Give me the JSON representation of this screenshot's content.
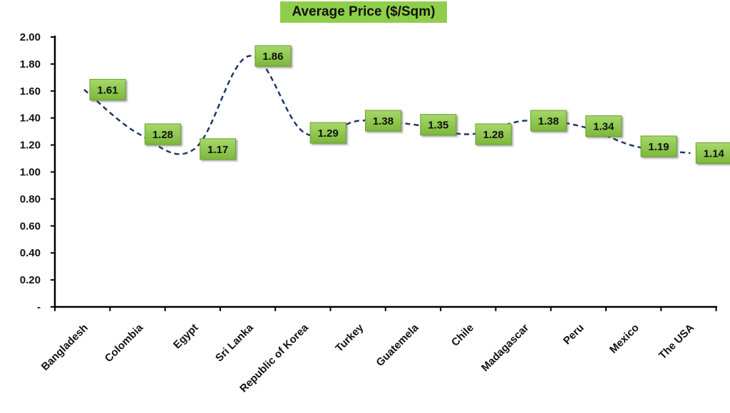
{
  "chart_data": {
    "type": "line",
    "title": "Average Price ($/Sqm)",
    "xlabel": "",
    "ylabel": "",
    "categories": [
      "Bangladesh",
      "Colombia",
      "Egypt",
      "Sri Lanka",
      "Republic of Korea",
      "Turkey",
      "Guatemela",
      "Chile",
      "Madagascar",
      "Peru",
      "Mexico",
      "The USA"
    ],
    "series": [
      {
        "values": [
          1.61,
          1.28,
          1.17,
          1.86,
          1.29,
          1.38,
          1.35,
          1.28,
          1.38,
          1.34,
          1.19,
          1.14
        ]
      }
    ],
    "data_labels": [
      "1.61",
      "1.28",
      "1.17",
      "1.86",
      "1.29",
      "1.38",
      "1.35",
      "1.28",
      "1.38",
      "1.34",
      "1.19",
      "1.14"
    ],
    "ylim": [
      0,
      2.0
    ],
    "y_ticks": [
      0,
      0.2,
      0.4,
      0.6,
      0.8,
      1.0,
      1.2,
      1.4,
      1.6,
      1.8,
      2.0
    ],
    "y_tick_labels": [
      "-",
      "0.20",
      "0.40",
      "0.60",
      "0.80",
      "1.00",
      "1.20",
      "1.40",
      "1.60",
      "1.80",
      "2.00"
    ],
    "grid": false,
    "legend": "none",
    "line_style": "dashed",
    "line_color": "#1f3864",
    "label_box_color": "#8fce4a"
  }
}
